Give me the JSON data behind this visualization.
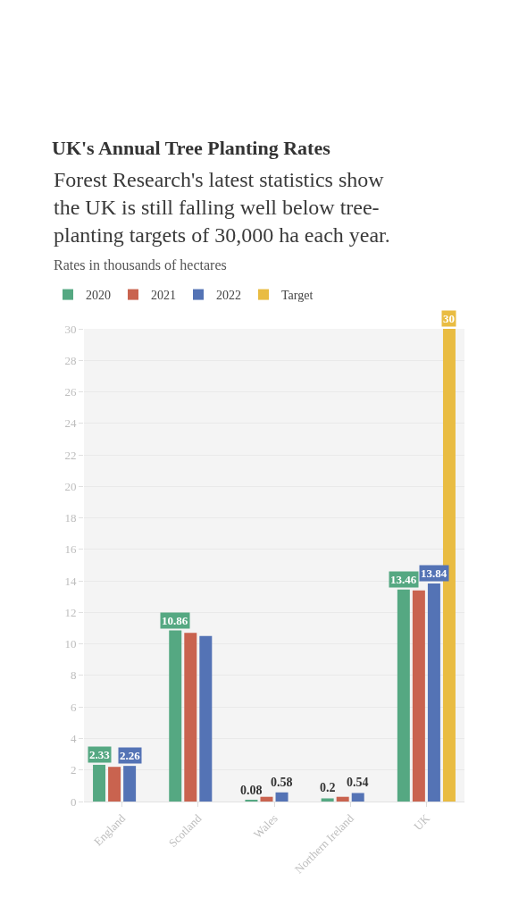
{
  "chart_data": {
    "type": "bar",
    "title": "UK's Annual Tree Planting Rates",
    "subtitle": "Forest Research's latest statistics show the UK is still falling well below tree-planting targets of 30,000 ha each year.",
    "annotations": [
      "Rates in thousands of hectares"
    ],
    "categories": [
      "England",
      "Scotland",
      "Wales",
      "Northern Ireland",
      "UK"
    ],
    "series": [
      {
        "name": "2020",
        "color": "#55a882",
        "values": [
          2.33,
          10.86,
          0.08,
          0.2,
          13.46
        ],
        "value_labels": [
          "2.33",
          "10.86",
          "0.08",
          "0.2",
          "13.46"
        ]
      },
      {
        "name": "2021",
        "color": "#c9634f",
        "values": [
          2.2,
          10.7,
          0.3,
          0.3,
          13.4
        ]
      },
      {
        "name": "2022",
        "color": "#5473b5",
        "values": [
          2.26,
          10.5,
          0.58,
          0.54,
          13.84
        ],
        "value_labels": [
          "2.26",
          null,
          "0.58",
          "0.54",
          "13.84"
        ]
      },
      {
        "name": "Target",
        "color": "#e9bc42",
        "values": [
          null,
          null,
          null,
          null,
          30
        ],
        "value_labels": [
          null,
          null,
          null,
          null,
          "30"
        ]
      }
    ],
    "ylim": [
      0,
      30
    ],
    "yticks": [
      0,
      2,
      4,
      6,
      8,
      10,
      12,
      14,
      16,
      18,
      20,
      22,
      24,
      26,
      28,
      30
    ],
    "grid": "y",
    "legend": "top left"
  }
}
